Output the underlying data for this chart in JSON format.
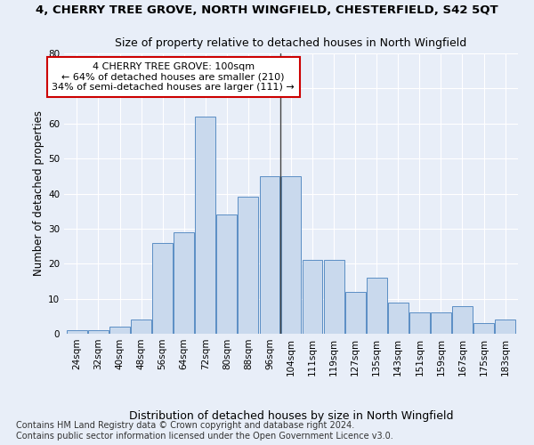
{
  "title": "4, CHERRY TREE GROVE, NORTH WINGFIELD, CHESTERFIELD, S42 5QT",
  "subtitle": "Size of property relative to detached houses in North Wingfield",
  "xlabel": "Distribution of detached houses by size in North Wingfield",
  "ylabel": "Number of detached properties",
  "categories": [
    "24sqm",
    "32sqm",
    "40sqm",
    "48sqm",
    "56sqm",
    "64sqm",
    "72sqm",
    "80sqm",
    "88sqm",
    "96sqm",
    "104sqm",
    "111sqm",
    "119sqm",
    "127sqm",
    "135sqm",
    "143sqm",
    "151sqm",
    "159sqm",
    "167sqm",
    "175sqm",
    "183sqm"
  ],
  "values": [
    1,
    1,
    2,
    4,
    26,
    29,
    62,
    34,
    39,
    45,
    45,
    21,
    21,
    12,
    16,
    9,
    6,
    6,
    8,
    3,
    4
  ],
  "bar_color": "#c9d9ed",
  "bar_edge_color": "#5b8ec4",
  "annotation_text": "4 CHERRY TREE GROVE: 100sqm\n← 64% of detached houses are smaller (210)\n34% of semi-detached houses are larger (111) →",
  "annotation_box_color": "#ffffff",
  "annotation_box_edge": "#cc0000",
  "ylim": [
    0,
    80
  ],
  "yticks": [
    0,
    10,
    20,
    30,
    40,
    50,
    60,
    70,
    80
  ],
  "bg_color": "#e8eef8",
  "plot_bg_color": "#e8eef8",
  "footer": "Contains HM Land Registry data © Crown copyright and database right 2024.\nContains public sector information licensed under the Open Government Licence v3.0.",
  "title_fontsize": 9.5,
  "subtitle_fontsize": 9,
  "xlabel_fontsize": 9,
  "ylabel_fontsize": 8.5,
  "annotation_fontsize": 8,
  "footer_fontsize": 7,
  "tick_fontsize": 7.5
}
